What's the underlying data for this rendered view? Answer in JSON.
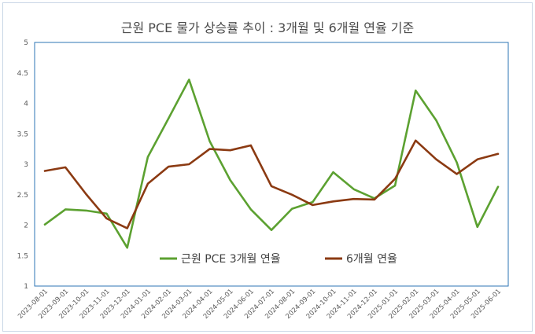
{
  "chart_data": {
    "type": "line",
    "title": "근원 PCE 물가 상승률 추이 : 3개월 및 6개월 연율 기준",
    "xlabel": "",
    "ylabel": "",
    "ylim": [
      1,
      5
    ],
    "yticks": [
      "1",
      "1.5",
      "2",
      "2.5",
      "3",
      "3.5",
      "4",
      "4.5",
      "5"
    ],
    "grid": false,
    "legend_position": "bottom-center inside",
    "categories": [
      "2023-08-01",
      "2023-09-01",
      "2023-10-01",
      "2023-11-01",
      "2023-12-01",
      "2024-01-01",
      "2024-02-01",
      "2024-03-01",
      "2024-04-01",
      "2024-05-01",
      "2024-06-01",
      "2024-07-01",
      "2024-08-01",
      "2024-09-01",
      "2024-10-01",
      "2024-11-01",
      "2024-12-01",
      "2025-01-01",
      "2025-02-01",
      "2025-03-01",
      "2025-04-01",
      "2025-05-01",
      "2025-06-01"
    ],
    "series": [
      {
        "name": "근원 PCE 3개월 연율",
        "color": "#5ca131",
        "values": [
          2.01,
          2.26,
          2.24,
          2.19,
          1.63,
          3.12,
          3.75,
          4.39,
          3.38,
          2.74,
          2.26,
          1.92,
          2.27,
          2.38,
          2.87,
          2.59,
          2.44,
          2.65,
          4.21,
          3.72,
          3.03,
          1.97,
          2.63
        ]
      },
      {
        "name": "6개월 연율",
        "color": "#8b3a12",
        "values": [
          2.89,
          2.95,
          2.51,
          2.11,
          1.95,
          2.68,
          2.96,
          3.0,
          3.25,
          3.23,
          3.31,
          2.64,
          2.5,
          2.33,
          2.39,
          2.43,
          2.42,
          2.76,
          3.39,
          3.08,
          2.84,
          3.08,
          3.17
        ]
      }
    ]
  }
}
